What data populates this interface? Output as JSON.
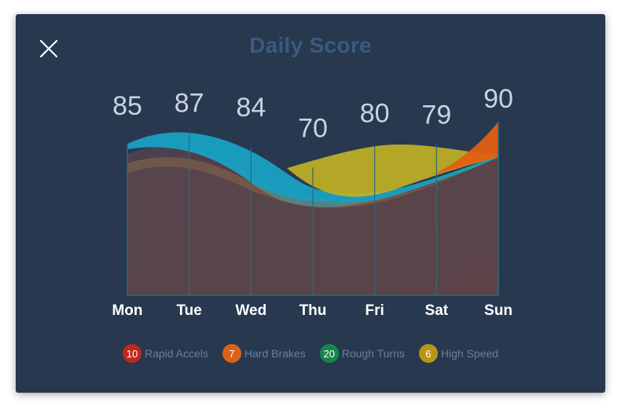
{
  "dialog": {
    "title": "Daily Score"
  },
  "chart_data": {
    "type": "area",
    "categories": [
      "Mon",
      "Tue",
      "Wed",
      "Thu",
      "Fri",
      "Sat",
      "Sun"
    ],
    "values": [
      85,
      87,
      84,
      70,
      80,
      79,
      90
    ],
    "value_labels": [
      "85",
      "87",
      "84",
      "70",
      "80",
      "79",
      "90"
    ]
  },
  "legend": [
    {
      "count": "10",
      "label": "Rapid Accels",
      "color": "#c0281c"
    },
    {
      "count": "7",
      "label": "Hard Brakes",
      "color": "#d9621a"
    },
    {
      "count": "20",
      "label": "Rough Turns",
      "color": "#16874a"
    },
    {
      "count": "6",
      "label": "High Speed",
      "color": "#b89418"
    }
  ]
}
